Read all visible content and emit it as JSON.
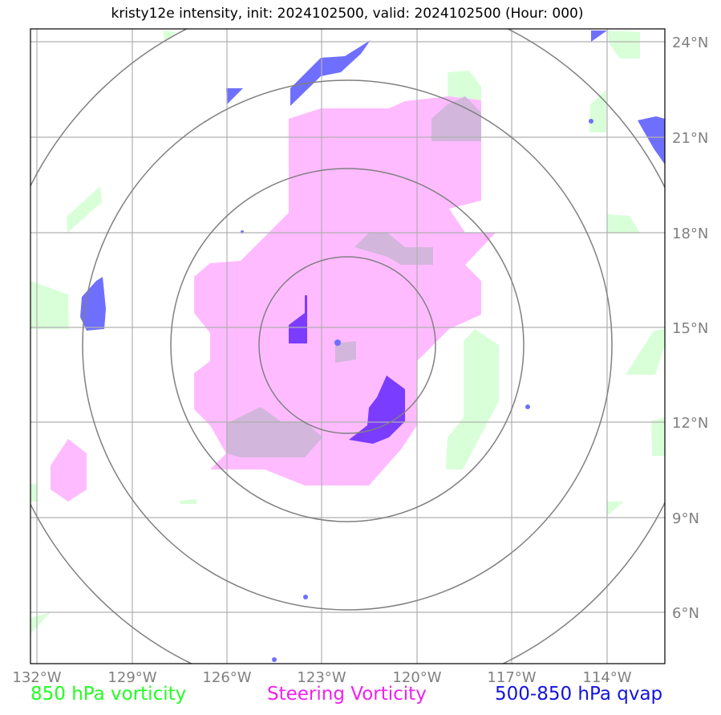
{
  "title": "kristy12e intensity, init: 2024102500, valid: 2024102500 (Hour: 000)",
  "axes": {
    "lon_ticks": [
      "132°W",
      "129°W",
      "126°W",
      "123°W",
      "120°W",
      "117°W",
      "114°W"
    ],
    "lat_ticks": [
      "24°N",
      "21°N",
      "18°N",
      "15°N",
      "12°N",
      "9°N",
      "6°N"
    ],
    "lon_range": [
      -132.2,
      -112.1
    ],
    "lat_range": [
      4.5,
      24.4
    ]
  },
  "storm_center": {
    "lon": -122.4,
    "lat": 14.5
  },
  "range_rings_deg": [
    2.8,
    5.6,
    8.4,
    11.2
  ],
  "colors": {
    "vorticity_850": "#ccffcc",
    "steering_vorticity": "#ffbbff",
    "qvap": "#5b5bff",
    "grid": "#b0b0b0",
    "rings": "#808080"
  },
  "legend": {
    "vorticity_850": "850 hPa vorticity",
    "steering_vorticity": "Steering Vorticity",
    "qvap": "500-850 hPa qvap"
  }
}
